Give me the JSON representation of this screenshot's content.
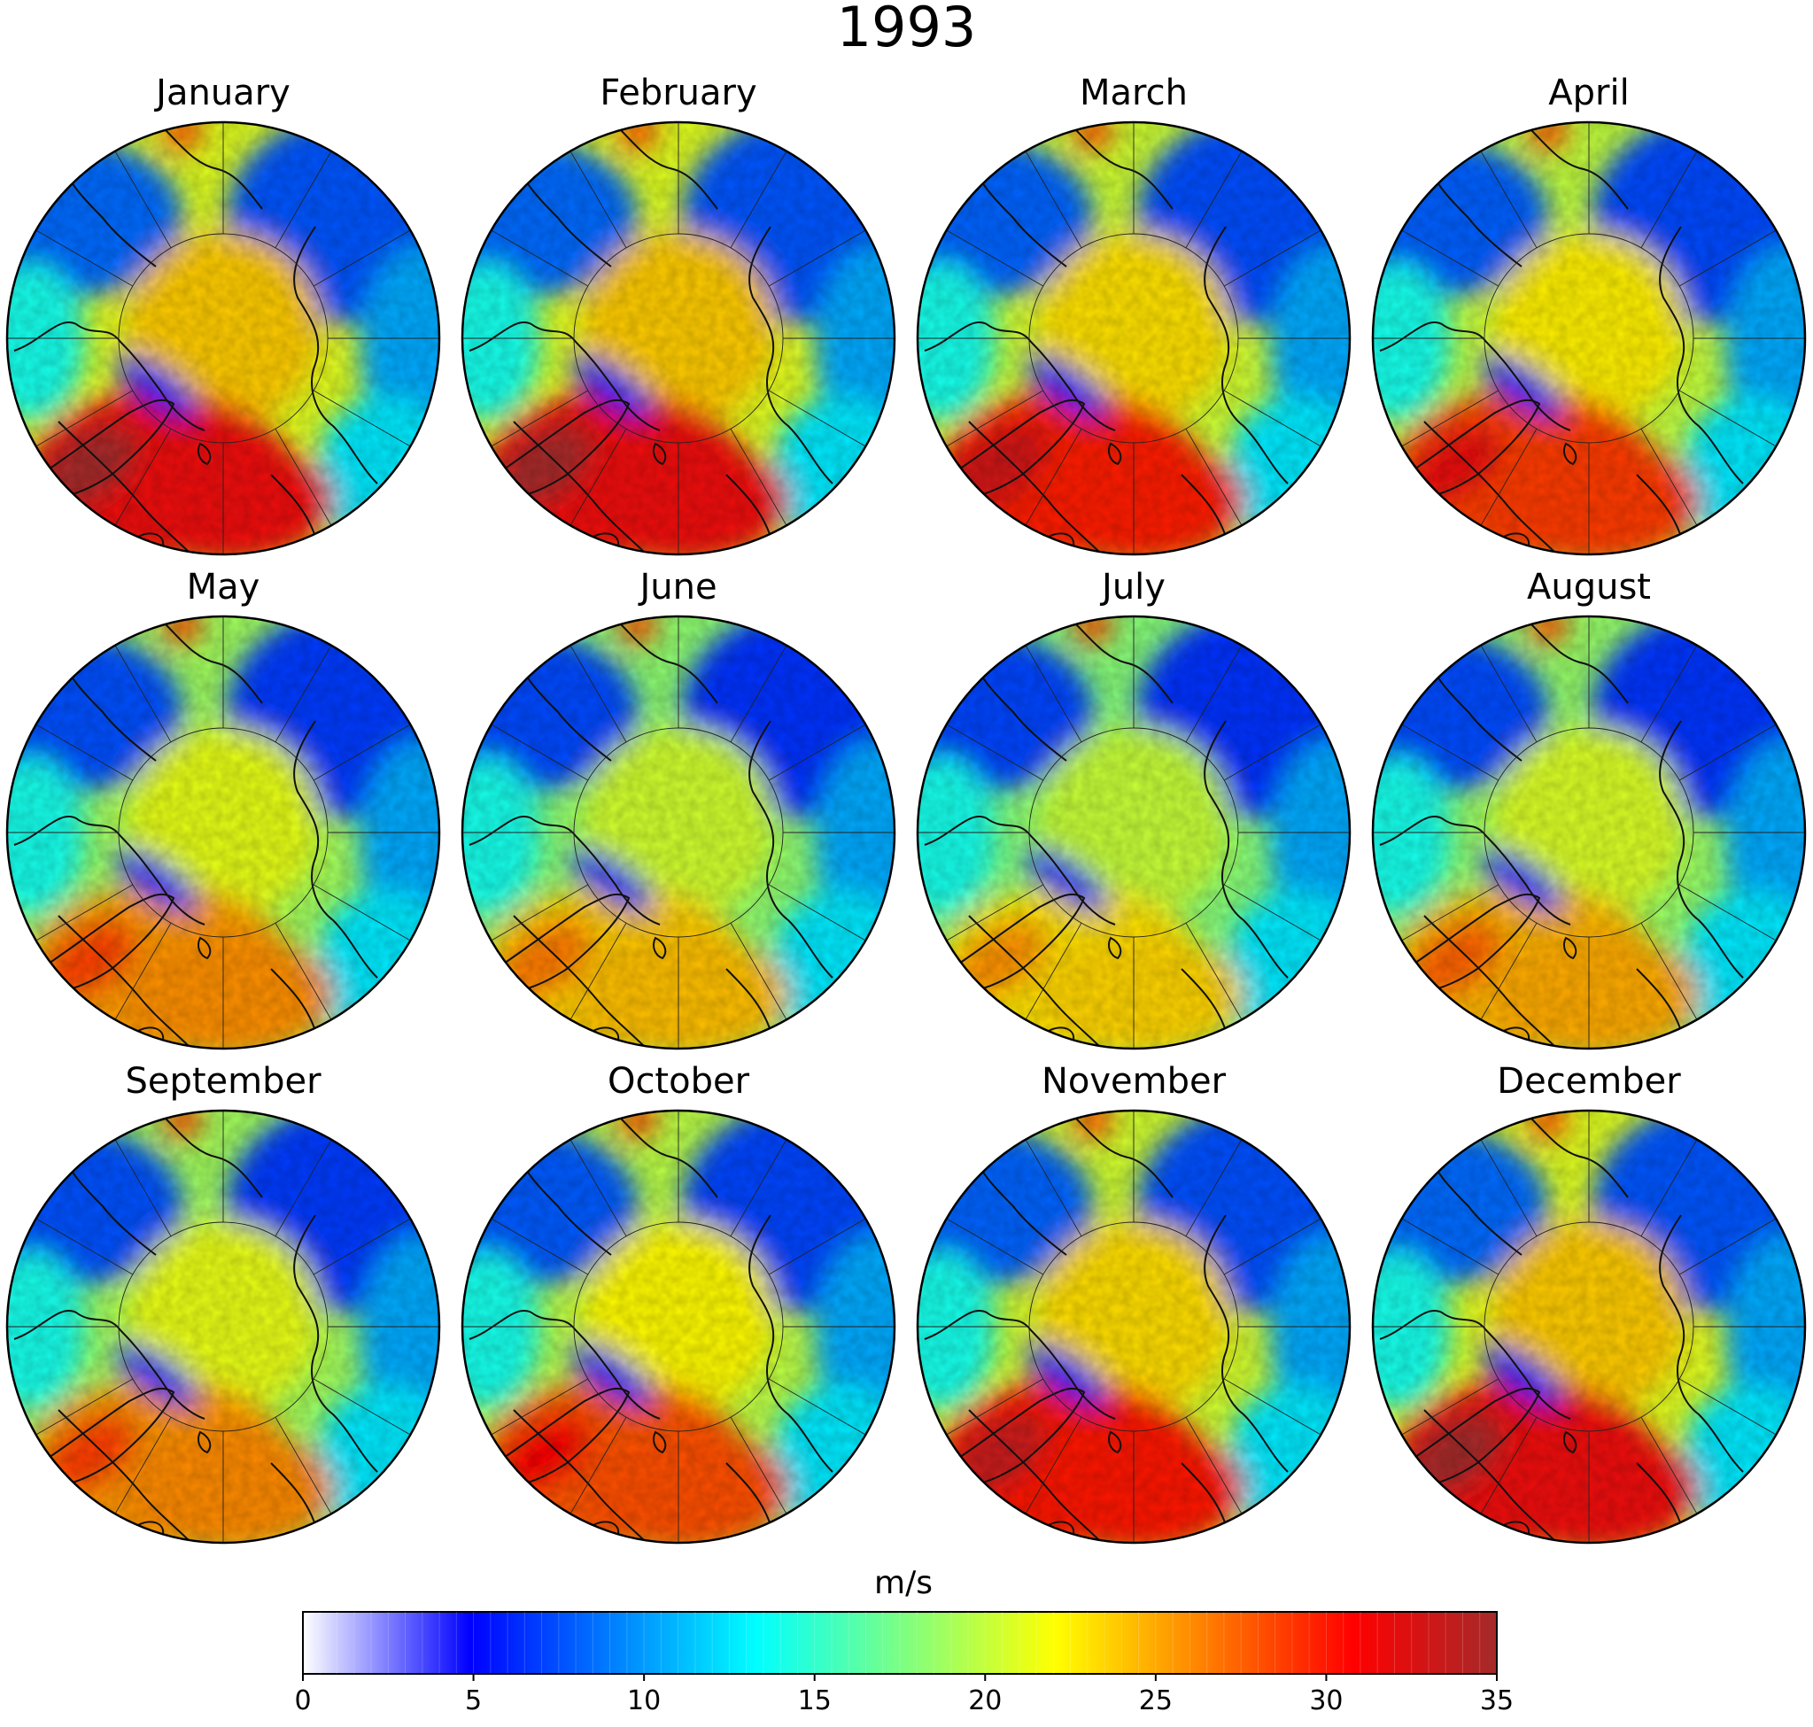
{
  "title": "1993",
  "panels": [
    {
      "month": "January",
      "intensity": 1.0
    },
    {
      "month": "February",
      "intensity": 1.0
    },
    {
      "month": "March",
      "intensity": 0.82
    },
    {
      "month": "April",
      "intensity": 0.7
    },
    {
      "month": "May",
      "intensity": 0.38
    },
    {
      "month": "June",
      "intensity": 0.2
    },
    {
      "month": "July",
      "intensity": 0.12
    },
    {
      "month": "August",
      "intensity": 0.28
    },
    {
      "month": "September",
      "intensity": 0.4
    },
    {
      "month": "October",
      "intensity": 0.62
    },
    {
      "month": "November",
      "intensity": 0.85
    },
    {
      "month": "December",
      "intensity": 1.0
    }
  ],
  "colorbar": {
    "label": "m/s",
    "min": 0,
    "max": 35,
    "ticks": [
      0,
      5,
      10,
      15,
      20,
      25,
      30,
      35
    ],
    "stops": [
      "#ffffff",
      "#0000ff",
      "#00ffff",
      "#ffff00",
      "#ff0000",
      "#a52a2a"
    ]
  }
}
